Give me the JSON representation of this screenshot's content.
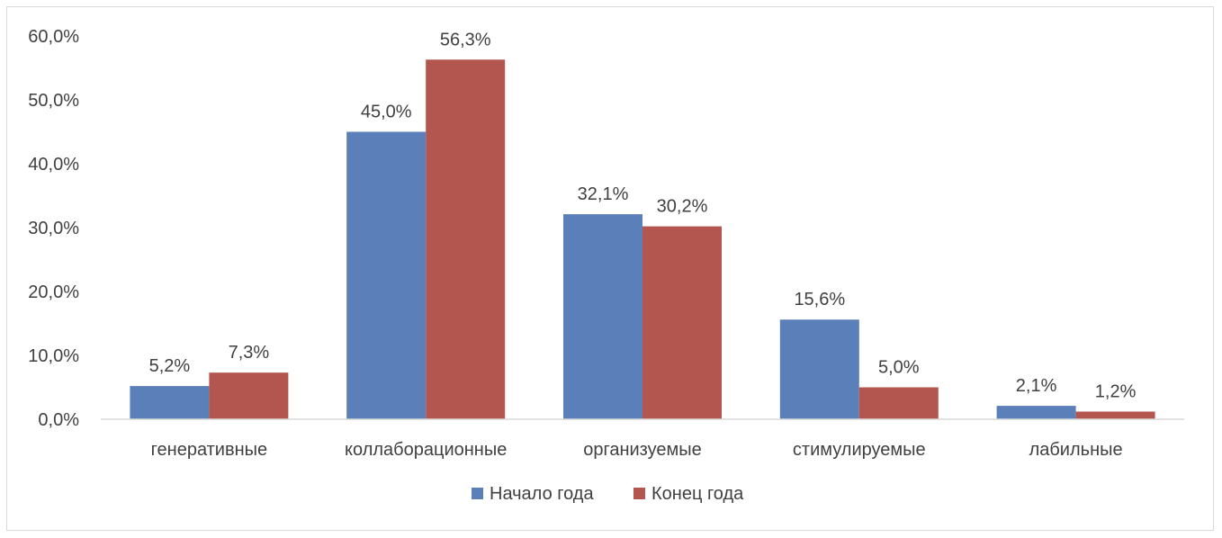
{
  "chart_data": {
    "type": "bar",
    "title": "",
    "xlabel": "",
    "ylabel": "",
    "categories": [
      "генеративные",
      "коллаборационные",
      "организуемые",
      "стимулируемые",
      "лабильные"
    ],
    "series": [
      {
        "name": "Начало года",
        "color": "#5b80b9",
        "values": [
          5.2,
          45.0,
          32.1,
          15.6,
          2.1
        ],
        "labels": [
          "5,2%",
          "45,0%",
          "32,1%",
          "15,6%",
          "2,1%"
        ]
      },
      {
        "name": "Конец года",
        "color": "#b45650",
        "values": [
          7.3,
          56.3,
          30.2,
          5.0,
          1.2
        ],
        "labels": [
          "7,3%",
          "56,3%",
          "30,2%",
          "5,0%",
          "1,2%"
        ]
      }
    ],
    "ylim": [
      0,
      60
    ],
    "yticks": [
      0,
      10,
      20,
      30,
      40,
      50,
      60
    ],
    "ytick_labels": [
      "0,0%",
      "10,0%",
      "20,0%",
      "30,0%",
      "40,0%",
      "50,0%",
      "60,0%"
    ],
    "grid": false,
    "legend_position": "bottom"
  }
}
